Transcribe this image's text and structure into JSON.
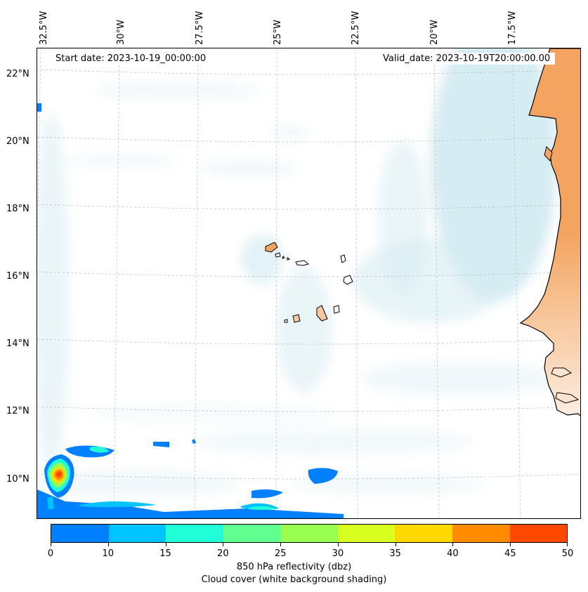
{
  "map": {
    "lon_labels": [
      "32.5°W",
      "30°W",
      "27.5°W",
      "25°W",
      "22.5°W",
      "20°W",
      "17.5°W"
    ],
    "lat_labels": [
      "22°N",
      "20°N",
      "18°N",
      "16°N",
      "14°N",
      "12°N",
      "10°N"
    ],
    "start_date": "Start date: 2023-10-19_00:00:00",
    "valid_date": "Valid_date: 2023-10-19T20:00:00.00",
    "colors": {
      "land": "#f4a460",
      "coast": "#000000",
      "cloud": "#add8e6",
      "grid": "#b0b0b0"
    }
  },
  "colorbar": {
    "ticks": [
      "0",
      "10",
      "15",
      "20",
      "25",
      "30",
      "35",
      "40",
      "45",
      "50"
    ],
    "colors": [
      "#0080ff",
      "#00c4ff",
      "#20ffd8",
      "#60ff90",
      "#98ff50",
      "#d8ff20",
      "#ffd800",
      "#ff8c00",
      "#ff4800"
    ],
    "label_line1": "850 hPa reflectivity (dbz)",
    "label_line2": "Cloud cover (white background shading)"
  }
}
